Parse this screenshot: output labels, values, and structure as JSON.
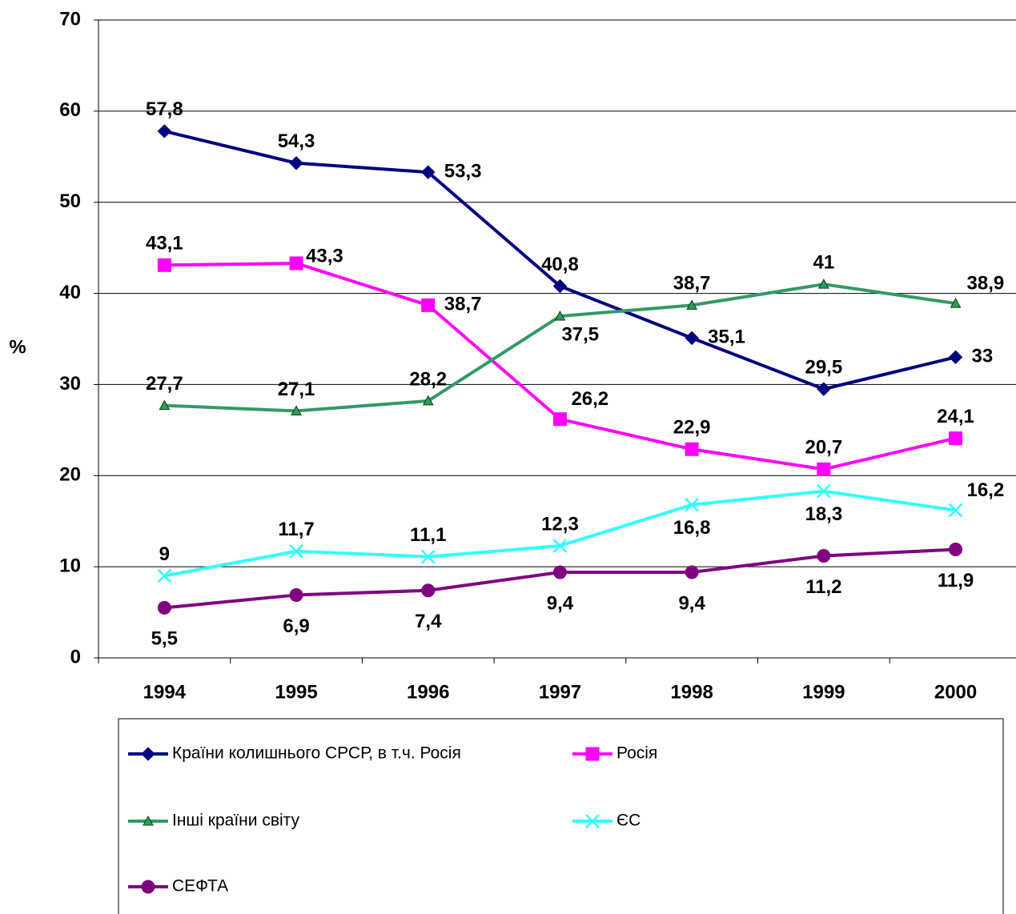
{
  "chart_data": {
    "type": "line",
    "y_label": "%",
    "categories": [
      "1994",
      "1995",
      "1996",
      "1997",
      "1998",
      "1999",
      "2000"
    ],
    "ylim": [
      0,
      70
    ],
    "yticks": [
      0,
      10,
      20,
      30,
      40,
      50,
      60,
      70
    ],
    "grid": true,
    "series": [
      {
        "name": "Країни колишнього СРСР, в т.ч. Росія",
        "color": "#000080",
        "marker": "diamond",
        "values": [
          57.8,
          54.3,
          53.3,
          40.8,
          35.1,
          29.5,
          33
        ],
        "value_labels": [
          "57,8",
          "54,3",
          "53,3",
          "40,8",
          "35,1",
          "29,5",
          "33"
        ]
      },
      {
        "name": "Росія",
        "color": "#ff00ff",
        "marker": "square",
        "values": [
          43.1,
          43.3,
          38.7,
          26.2,
          22.9,
          20.7,
          24.1
        ],
        "value_labels": [
          "43,1",
          "43,3",
          "38,7",
          "26,2",
          "22,9",
          "20,7",
          "24,1"
        ]
      },
      {
        "name": "Інші країни світу",
        "color": "#339966",
        "marker": "triangle",
        "values": [
          27.7,
          27.1,
          28.2,
          37.5,
          38.7,
          41,
          38.9
        ],
        "value_labels": [
          "27,7",
          "27,1",
          "28,2",
          "37,5",
          "38,7",
          "41",
          "38,9"
        ]
      },
      {
        "name": "ЄС",
        "color": "#33ffff",
        "marker": "x",
        "values": [
          9,
          11.7,
          11.1,
          12.3,
          16.8,
          18.3,
          16.2
        ],
        "value_labels": [
          "9",
          "11,7",
          "11,1",
          "12,3",
          "16,8",
          "18,3",
          "16,2"
        ]
      },
      {
        "name": "СЕФТА",
        "color": "#800080",
        "marker": "circle",
        "values": [
          5.5,
          6.9,
          7.4,
          9.4,
          9.4,
          11.2,
          11.9
        ],
        "value_labels": [
          "5,5",
          "6,9",
          "7,4",
          "9,4",
          "9,4",
          "11,2",
          "11,9"
        ]
      }
    ]
  }
}
